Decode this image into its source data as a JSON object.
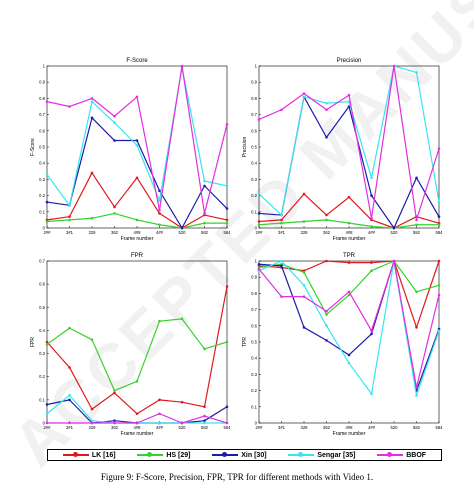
{
  "figure": {
    "caption": "Figure 9:  F-Score, Precision, FPR, TPR for different methods with Video 1.",
    "watermark": "ACCEPTED MANUSCRIPT"
  },
  "legend": {
    "placement": "bottom",
    "entries": [
      {
        "label": "LK [16]",
        "color": "#e0191e"
      },
      {
        "label": "HS [29]",
        "color": "#37d12f"
      },
      {
        "label": "Xin [30]",
        "color": "#1c1caa"
      },
      {
        "label": "Sengar [35]",
        "color": "#38e4f0"
      },
      {
        "label": "BBOF",
        "color": "#e52ee0"
      }
    ]
  },
  "chart_data": [
    {
      "type": "line",
      "title": "F-Score",
      "xlabel": "Frame number",
      "ylabel": "F-Score",
      "categories": [
        "2##",
        "3#1",
        "329",
        "362",
        "4#8",
        "4##",
        "520",
        "582",
        "584"
      ],
      "ylim": [
        0,
        1
      ],
      "yticks": [
        "0",
        "0.1",
        "0.2",
        "0.3",
        "0.4",
        "0.5",
        "0.6",
        "0.7",
        "0.8",
        "0.9",
        "1"
      ],
      "grid": false,
      "series": [
        {
          "name": "LK [16]",
          "color": "#e0191e",
          "values": [
            0.05,
            0.07,
            0.34,
            0.13,
            0.31,
            0.09,
            0.0,
            0.08,
            0.05
          ]
        },
        {
          "name": "HS [29]",
          "color": "#37d12f",
          "values": [
            0.04,
            0.05,
            0.06,
            0.09,
            0.05,
            0.02,
            0.0,
            0.03,
            0.03
          ]
        },
        {
          "name": "Xin [30]",
          "color": "#1c1caa",
          "values": [
            0.16,
            0.14,
            0.68,
            0.54,
            0.54,
            0.23,
            0.0,
            0.26,
            0.12
          ]
        },
        {
          "name": "Sengar [35]",
          "color": "#38e4f0",
          "values": [
            0.33,
            0.14,
            0.78,
            0.65,
            0.51,
            0.17,
            0.99,
            0.29,
            0.26
          ]
        },
        {
          "name": "BBOF",
          "color": "#e52ee0",
          "values": [
            0.78,
            0.75,
            0.8,
            0.69,
            0.81,
            0.11,
            1.0,
            0.09,
            0.64
          ]
        }
      ]
    },
    {
      "type": "line",
      "title": "Precision",
      "xlabel": "Frame number",
      "ylabel": "Precision",
      "categories": [
        "2##",
        "3#1",
        "329",
        "362",
        "4#8",
        "4##",
        "520",
        "582",
        "584"
      ],
      "ylim": [
        0,
        1
      ],
      "yticks": [
        "0",
        "0.1",
        "0.2",
        "0.3",
        "0.4",
        "0.5",
        "0.6",
        "0.7",
        "0.8",
        "0.9",
        "1"
      ],
      "grid": false,
      "series": [
        {
          "name": "LK [16]",
          "color": "#e0191e",
          "values": [
            0.04,
            0.05,
            0.21,
            0.08,
            0.19,
            0.05,
            0.0,
            0.07,
            0.03
          ]
        },
        {
          "name": "HS [29]",
          "color": "#37d12f",
          "values": [
            0.02,
            0.03,
            0.04,
            0.05,
            0.03,
            0.01,
            0.0,
            0.02,
            0.02
          ]
        },
        {
          "name": "Xin [30]",
          "color": "#1c1caa",
          "values": [
            0.09,
            0.08,
            0.81,
            0.56,
            0.75,
            0.2,
            0.0,
            0.31,
            0.07
          ]
        },
        {
          "name": "Sengar [35]",
          "color": "#38e4f0",
          "values": [
            0.21,
            0.08,
            0.81,
            0.77,
            0.78,
            0.31,
            1.0,
            0.96,
            0.16
          ]
        },
        {
          "name": "BBOF",
          "color": "#e52ee0",
          "values": [
            0.67,
            0.73,
            0.83,
            0.73,
            0.82,
            0.06,
            1.0,
            0.05,
            0.49
          ]
        }
      ]
    },
    {
      "type": "line",
      "title": "FPR",
      "xlabel": "Frame number",
      "ylabel": "FPR",
      "categories": [
        "2##",
        "3#1",
        "329",
        "362",
        "4#8",
        "4##",
        "520",
        "582",
        "584"
      ],
      "ylim": [
        0,
        0.7
      ],
      "yticks": [
        "0",
        "0.1",
        "0.2",
        "0.3",
        "0.4",
        "0.5",
        "0.6",
        "0.7"
      ],
      "grid": false,
      "series": [
        {
          "name": "LK [16]",
          "color": "#e0191e",
          "values": [
            0.35,
            0.24,
            0.06,
            0.13,
            0.04,
            0.1,
            0.09,
            0.07,
            0.59
          ]
        },
        {
          "name": "HS [29]",
          "color": "#37d12f",
          "values": [
            0.34,
            0.41,
            0.36,
            0.14,
            0.18,
            0.44,
            0.45,
            0.32,
            0.35
          ]
        },
        {
          "name": "Xin [30]",
          "color": "#1c1caa",
          "values": [
            0.08,
            0.1,
            0.0,
            0.01,
            0.0,
            0.0,
            0.0,
            0.01,
            0.07
          ]
        },
        {
          "name": "Sengar [35]",
          "color": "#38e4f0",
          "values": [
            0.04,
            0.12,
            0.01,
            0.0,
            0.0,
            0.0,
            0.0,
            0.0,
            0.0
          ]
        },
        {
          "name": "BBOF",
          "color": "#e52ee0",
          "values": [
            0.0,
            0.0,
            0.0,
            0.0,
            0.0,
            0.04,
            0.0,
            0.03,
            0.0
          ]
        }
      ]
    },
    {
      "type": "line",
      "title": "TPR",
      "xlabel": "Frame number",
      "ylabel": "TPR",
      "categories": [
        "2##",
        "3#1",
        "329",
        "362",
        "4#8",
        "4##",
        "520",
        "582",
        "584"
      ],
      "ylim": [
        0,
        1
      ],
      "yticks": [
        "0",
        "0.1",
        "0.2",
        "0.3",
        "0.4",
        "0.5",
        "0.6",
        "0.7",
        "0.8",
        "0.9",
        "1"
      ],
      "grid": false,
      "series": [
        {
          "name": "LK [16]",
          "color": "#e0191e",
          "values": [
            0.97,
            0.96,
            0.94,
            1.0,
            0.99,
            0.99,
            1.0,
            0.59,
            1.0
          ]
        },
        {
          "name": "HS [29]",
          "color": "#37d12f",
          "values": [
            0.96,
            0.98,
            0.93,
            0.67,
            0.79,
            0.94,
            1.0,
            0.81,
            0.85
          ]
        },
        {
          "name": "Xin [30]",
          "color": "#1c1caa",
          "values": [
            0.98,
            0.97,
            0.59,
            0.51,
            0.42,
            0.55,
            1.0,
            0.2,
            0.58
          ]
        },
        {
          "name": "Sengar [35]",
          "color": "#38e4f0",
          "values": [
            0.94,
            1.0,
            0.85,
            0.6,
            0.37,
            0.18,
            1.0,
            0.17,
            0.57
          ]
        },
        {
          "name": "BBOF",
          "color": "#e52ee0",
          "values": [
            0.95,
            0.78,
            0.78,
            0.69,
            0.81,
            0.57,
            1.0,
            0.22,
            0.79
          ]
        }
      ]
    }
  ]
}
